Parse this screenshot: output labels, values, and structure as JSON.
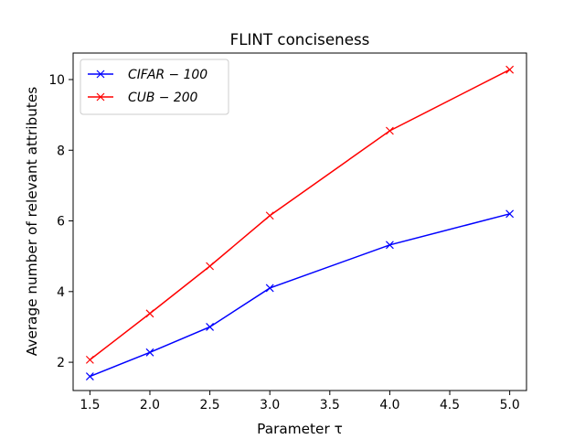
{
  "chart_data": {
    "type": "line",
    "title": "FLINT conciseness",
    "xlabel": "Parameter τ",
    "ylabel": "Average number of relevant attributes",
    "xlim": [
      1.36,
      5.14
    ],
    "ylim": [
      1.2,
      10.75
    ],
    "x_ticks": [
      "1.5",
      "2.0",
      "2.5",
      "3.0",
      "3.5",
      "4.0",
      "4.5",
      "5.0"
    ],
    "y_ticks": [
      "2",
      "4",
      "6",
      "8",
      "10"
    ],
    "x": [
      1.5,
      2.0,
      2.5,
      3.0,
      4.0,
      5.0
    ],
    "series": [
      {
        "name": "CIFAR − 100",
        "color": "#0000ff",
        "marker": "x",
        "values": [
          1.6,
          2.28,
          3.0,
          4.1,
          5.32,
          6.2
        ]
      },
      {
        "name": "CUB − 200",
        "color": "#ff0000",
        "marker": "x",
        "values": [
          2.07,
          3.38,
          4.72,
          6.15,
          8.55,
          10.28
        ]
      }
    ],
    "grid": false,
    "legend_position": "top-left"
  }
}
